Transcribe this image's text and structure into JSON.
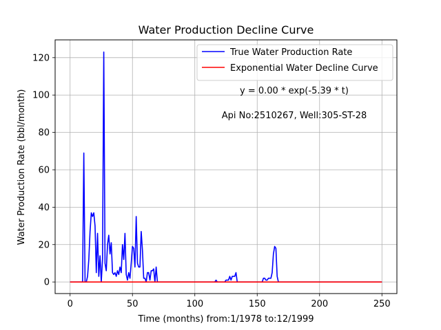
{
  "chart_data": {
    "type": "line",
    "title": "Water Production Decline Curve",
    "xlabel": "Time (months) from:1/1978 to:12/1999",
    "ylabel": "Water Production Rate (bbl/month)",
    "xlim": [
      -12,
      262
    ],
    "ylim": [
      -6.2,
      129.5
    ],
    "xticks": [
      0,
      50,
      100,
      150,
      200,
      250
    ],
    "yticks": [
      0,
      20,
      40,
      60,
      80,
      100,
      120
    ],
    "grid": true,
    "legend_position": "top-right",
    "annotations": [
      "y = 0.00 * exp(-5.39 * t)",
      "Api No:2510267, Well:305-ST-28"
    ],
    "series": [
      {
        "name": "True Water Production Rate",
        "color": "#0000ff",
        "points": [
          [
            0,
            0
          ],
          [
            10,
            0
          ],
          [
            11,
            69
          ],
          [
            12,
            0
          ],
          [
            13,
            0
          ],
          [
            14,
            3
          ],
          [
            15,
            12
          ],
          [
            16,
            27
          ],
          [
            17,
            37
          ],
          [
            18,
            35
          ],
          [
            19,
            37
          ],
          [
            20,
            30
          ],
          [
            21,
            5
          ],
          [
            22,
            26
          ],
          [
            23,
            3
          ],
          [
            24,
            14
          ],
          [
            25,
            0
          ],
          [
            26,
            12
          ],
          [
            27,
            123
          ],
          [
            28,
            10
          ],
          [
            29,
            6
          ],
          [
            30,
            20
          ],
          [
            31,
            25
          ],
          [
            32,
            15
          ],
          [
            33,
            21
          ],
          [
            34,
            5
          ],
          [
            35,
            4
          ],
          [
            36,
            5
          ],
          [
            37,
            3
          ],
          [
            38,
            6
          ],
          [
            39,
            4
          ],
          [
            40,
            8
          ],
          [
            41,
            5
          ],
          [
            42,
            20
          ],
          [
            43,
            12
          ],
          [
            44,
            26
          ],
          [
            45,
            4
          ],
          [
            46,
            1
          ],
          [
            47,
            5
          ],
          [
            48,
            2
          ],
          [
            49,
            10
          ],
          [
            50,
            19
          ],
          [
            51,
            18
          ],
          [
            52,
            8
          ],
          [
            53,
            35
          ],
          [
            54,
            10
          ],
          [
            55,
            8
          ],
          [
            56,
            8
          ],
          [
            57,
            27
          ],
          [
            58,
            17
          ],
          [
            59,
            2
          ],
          [
            60,
            2
          ],
          [
            61,
            0
          ],
          [
            62,
            5
          ],
          [
            63,
            5
          ],
          [
            64,
            1
          ],
          [
            65,
            6
          ],
          [
            66,
            6
          ],
          [
            67,
            7
          ],
          [
            68,
            0
          ],
          [
            69,
            8
          ],
          [
            70,
            0
          ],
          [
            71,
            0
          ],
          [
            115,
            0
          ],
          [
            116,
            0
          ],
          [
            117,
            1
          ],
          [
            118,
            0
          ],
          [
            124,
            0
          ],
          [
            125,
            1
          ],
          [
            126,
            1
          ],
          [
            127,
            1
          ],
          [
            128,
            3
          ],
          [
            129,
            1
          ],
          [
            130,
            3
          ],
          [
            131,
            3
          ],
          [
            132,
            3
          ],
          [
            133,
            5
          ],
          [
            134,
            0
          ],
          [
            135,
            0
          ],
          [
            153,
            0
          ],
          [
            154,
            0
          ],
          [
            155,
            2
          ],
          [
            156,
            2
          ],
          [
            157,
            1
          ],
          [
            158,
            1
          ],
          [
            159,
            2
          ],
          [
            160,
            2
          ],
          [
            161,
            2
          ],
          [
            162,
            5
          ],
          [
            163,
            15
          ],
          [
            164,
            19
          ],
          [
            165,
            18
          ],
          [
            166,
            3
          ],
          [
            167,
            0
          ],
          [
            168,
            0
          ],
          [
            250,
            0
          ]
        ]
      },
      {
        "name": "Exponential Water Decline Curve",
        "color": "#ff0000",
        "points": [
          [
            0,
            0
          ],
          [
            250,
            0
          ]
        ]
      }
    ]
  }
}
